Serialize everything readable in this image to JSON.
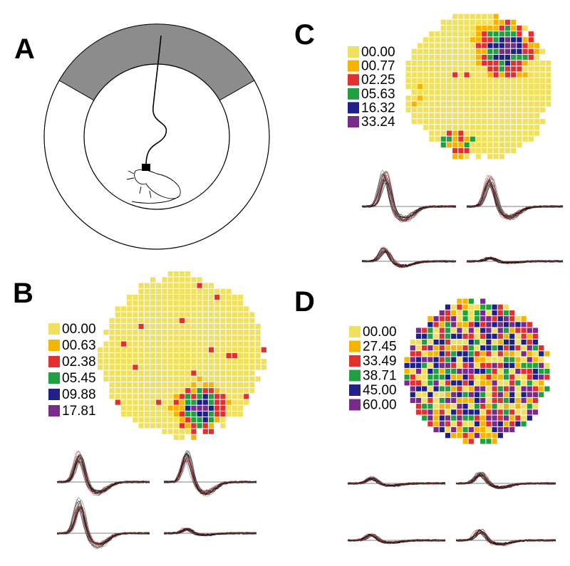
{
  "panels": [
    {
      "label": "A"
    },
    {
      "label": "B",
      "legend": [
        {
          "label": "00.00",
          "color": "#f0e060"
        },
        {
          "label": "00.63",
          "color": "#f5b400"
        },
        {
          "label": "02.38",
          "color": "#e03030"
        },
        {
          "label": "05.45",
          "color": "#20a040"
        },
        {
          "label": "09.88",
          "color": "#20208a"
        },
        {
          "label": "17.81",
          "color": "#7a2a8a"
        }
      ]
    },
    {
      "label": "C",
      "legend": [
        {
          "label": "00.00",
          "color": "#f0e060"
        },
        {
          "label": "00.77",
          "color": "#f5b400"
        },
        {
          "label": "02.25",
          "color": "#e03030"
        },
        {
          "label": "05.63",
          "color": "#20a040"
        },
        {
          "label": "16.32",
          "color": "#20208a"
        },
        {
          "label": "33.24",
          "color": "#7a2a8a"
        }
      ]
    },
    {
      "label": "D",
      "legend": [
        {
          "label": "00.00",
          "color": "#f0e060"
        },
        {
          "label": "27.45",
          "color": "#f5b400"
        },
        {
          "label": "33.49",
          "color": "#e03030"
        },
        {
          "label": "38.71",
          "color": "#20a040"
        },
        {
          "label": "45.00",
          "color": "#20208a"
        },
        {
          "label": "60.00",
          "color": "#7a2a8a"
        }
      ]
    }
  ]
}
